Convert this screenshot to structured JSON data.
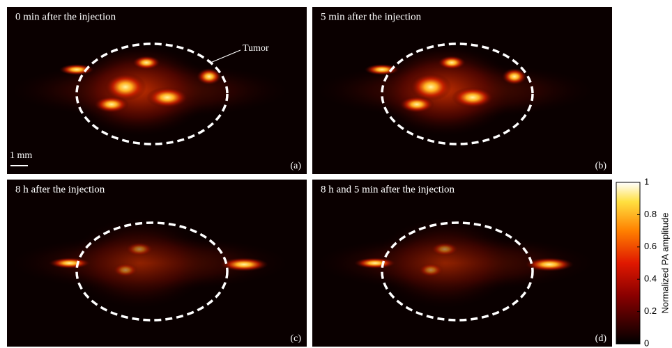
{
  "panels": [
    {
      "title": "0 min after the injection",
      "label": "(a)"
    },
    {
      "title": "5  min after the injection",
      "label": "(b)"
    },
    {
      "title": "8 h after the injection",
      "label": "(c)"
    },
    {
      "title": "8 h and 5 min after the injection",
      "label": "(d)"
    }
  ],
  "annotations": {
    "tumor": "Tumor",
    "scale_bar": "1 mm"
  },
  "colorbar": {
    "label": "Normalized PA amplitude",
    "lim": [
      0,
      1
    ],
    "ticks": [
      0,
      0.2,
      0.4,
      0.6,
      0.8,
      1
    ]
  }
}
